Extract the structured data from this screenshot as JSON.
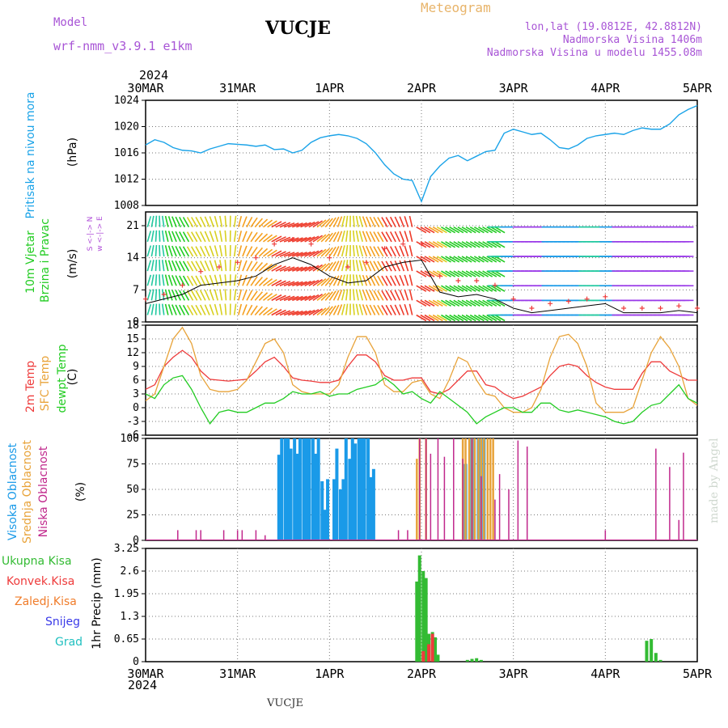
{
  "header": {
    "model_label": "Model",
    "model_name": "wrf-nmm_v3.9.1  e1km",
    "station_title": "VUCJE",
    "meteogram_label": "Meteogram",
    "lonlat": "lon,lat (19.0812E, 42.8812N)",
    "elevation": "Nadmorska Visina 1406m",
    "model_elevation": "Nadmorska Visina u modelu 1455.08m"
  },
  "footer": {
    "station": "VUCJE",
    "credit": "made by Angel"
  },
  "time_axis": {
    "year_top": "2024",
    "year_bottom": "2024",
    "labels": [
      "30MAR",
      "31MAR",
      "1APR",
      "2APR",
      "3APR",
      "4APR",
      "5APR"
    ]
  },
  "colors": {
    "pressure": "#1aa3e8",
    "temp2m": "#ee3b3b",
    "sfc_temp": "#e8a33a",
    "dewpoint": "#22cc22",
    "high_cloud": "#1a9ae8",
    "mid_cloud": "#e8a33a",
    "low_cloud": "#c0288c",
    "total_precip": "#33bb33",
    "conv_precip": "#ee3b3b",
    "frozen_precip": "#f07c2a",
    "snow": "#3a3ae8",
    "hail": "#20c0c0",
    "wind_speed": "#000000",
    "wind_gust": "#ee3b3b"
  },
  "panels": {
    "pressure": {
      "title": "Pritisak na nivou mora",
      "unit": "(hPa)"
    },
    "wind": {
      "title1": "10m Vjetar",
      "title2": "Brzina i Pravac",
      "unit": "(m/s)",
      "compass": "w <-|-> E",
      "compass2": "S <-|-> N"
    },
    "temp": {
      "label1": "2m Temp",
      "label2": "SFC Temp",
      "label3": "dewpt Temp",
      "unit": "(C)"
    },
    "cloud": {
      "label1": "Visoka Oblacnost",
      "label2": "Srednja Oblacnost",
      "label3": "Niska Oblacnost",
      "unit": "(%)"
    },
    "precip": {
      "unit": "1hr Precip (mm)",
      "legend": [
        "Ukupna Kisa",
        "Konvek.Kisa",
        "Zaledj.Kisa",
        "Snijeg",
        "Grad"
      ]
    }
  },
  "chart_data": [
    {
      "type": "line",
      "title": "",
      "ylabel": "Pritisak na nivou mora (hPa)",
      "ylim": [
        1008,
        1024
      ],
      "yticks": [
        "1008",
        "1012",
        "1016",
        "1020",
        "1024"
      ],
      "x_unit": "days from 30MAR 00Z",
      "series": [
        {
          "name": "",
          "x": [
            0,
            0.1,
            0.2,
            0.3,
            0.4,
            0.5,
            0.6,
            0.7,
            0.8,
            0.9,
            1.0,
            1.1,
            1.2,
            1.3,
            1.4,
            1.5,
            1.6,
            1.7,
            1.8,
            1.9,
            2.0,
            2.1,
            2.2,
            2.3,
            2.4,
            2.5,
            2.6,
            2.7,
            2.8,
            2.9,
            3.0,
            3.1,
            3.2,
            3.3,
            3.4,
            3.5,
            3.6,
            3.7,
            3.8,
            3.9,
            4.0,
            4.1,
            4.2,
            4.3,
            4.4,
            4.5,
            4.6,
            4.7,
            4.8,
            4.9,
            5.0,
            5.1,
            5.2,
            5.3,
            5.4,
            5.5,
            5.6,
            5.7,
            5.8,
            5.9,
            6.0
          ],
          "values": [
            1017.2,
            1018.0,
            1017.6,
            1016.8,
            1016.4,
            1016.3,
            1016.0,
            1016.6,
            1017.0,
            1017.4,
            1017.3,
            1017.2,
            1017.0,
            1017.2,
            1016.5,
            1016.6,
            1016.0,
            1016.4,
            1017.6,
            1018.3,
            1018.6,
            1018.8,
            1018.6,
            1018.2,
            1017.4,
            1016.0,
            1014.2,
            1012.8,
            1012.0,
            1011.8,
            1008.6,
            1012.4,
            1014.0,
            1015.2,
            1015.6,
            1014.8,
            1015.5,
            1016.2,
            1016.4,
            1019.0,
            1019.6,
            1019.2,
            1018.8,
            1019.0,
            1018.0,
            1016.8,
            1016.6,
            1017.2,
            1018.2,
            1018.6,
            1018.8,
            1019.0,
            1018.8,
            1019.4,
            1019.8,
            1019.6,
            1019.6,
            1020.4,
            1021.8,
            1022.6,
            1023.2
          ]
        }
      ]
    },
    {
      "type": "line",
      "title": "",
      "ylabel": "10m Vjetar Brzina i Pravac (m/s)",
      "ylim": [
        0,
        24
      ],
      "yticks": [
        "0",
        "7",
        "14",
        "21"
      ],
      "series": [
        {
          "name": "",
          "x": [
            0,
            0.2,
            0.4,
            0.6,
            0.8,
            1.0,
            1.2,
            1.4,
            1.6,
            1.8,
            2.0,
            2.2,
            2.4,
            2.6,
            2.8,
            3.0,
            3.2,
            3.4,
            3.6,
            3.8,
            4.0,
            4.2,
            4.4,
            4.6,
            4.8,
            5.0,
            5.2,
            5.4,
            5.6,
            5.8,
            6.0
          ],
          "values": [
            4,
            5,
            6,
            8,
            8.5,
            9,
            10,
            12.5,
            14,
            12.5,
            10,
            8.5,
            9,
            12,
            13,
            13.5,
            6.5,
            5.5,
            6,
            5,
            3,
            2,
            2.5,
            3,
            3.5,
            4,
            2,
            2,
            2,
            2.5,
            2
          ]
        },
        {
          "name": "",
          "x": [
            0,
            0.2,
            0.4,
            0.6,
            0.8,
            1.0,
            1.2,
            1.4,
            1.6,
            1.8,
            2.0,
            2.2,
            2.4,
            2.6,
            2.8,
            3.0,
            3.2,
            3.4,
            3.6,
            3.8,
            4.0,
            4.2,
            4.4,
            4.6,
            4.8,
            5.0,
            5.2,
            5.4,
            5.6,
            5.8,
            6.0
          ],
          "values": [
            5,
            6,
            8,
            11,
            12,
            13,
            14,
            17,
            18,
            17,
            14,
            12,
            13,
            16,
            17,
            17,
            10,
            9,
            9,
            8,
            5,
            3,
            4,
            4.5,
            5,
            5.5,
            3,
            3,
            3,
            3.5,
            3
          ]
        }
      ]
    },
    {
      "type": "line",
      "title": "",
      "ylabel": "(C)",
      "ylim": [
        -6,
        18
      ],
      "yticks": [
        "-6",
        "-3",
        "0",
        "3",
        "6",
        "9",
        "12",
        "15",
        "18"
      ],
      "series": [
        {
          "name": "2m Temp",
          "x": [
            0,
            0.1,
            0.2,
            0.3,
            0.4,
            0.5,
            0.6,
            0.7,
            0.8,
            0.9,
            1.0,
            1.1,
            1.2,
            1.3,
            1.4,
            1.5,
            1.6,
            1.7,
            1.8,
            1.9,
            2.0,
            2.1,
            2.2,
            2.3,
            2.4,
            2.5,
            2.6,
            2.7,
            2.8,
            2.9,
            3.0,
            3.1,
            3.2,
            3.3,
            3.4,
            3.5,
            3.6,
            3.7,
            3.8,
            3.9,
            4.0,
            4.1,
            4.2,
            4.3,
            4.4,
            4.5,
            4.6,
            4.7,
            4.8,
            4.9,
            5.0,
            5.1,
            5.2,
            5.3,
            5.4,
            5.5,
            5.6,
            5.7,
            5.8,
            5.9,
            6.0
          ],
          "values": [
            4,
            5,
            9,
            11,
            12.5,
            11,
            8,
            6.2,
            6,
            5.8,
            6,
            6.2,
            8,
            10,
            11,
            9,
            6.5,
            6,
            5.8,
            5.5,
            5.5,
            6,
            9,
            11.5,
            11.5,
            10,
            7,
            6,
            6,
            6.5,
            6.5,
            3.5,
            3,
            4,
            6,
            8,
            8,
            5,
            4.5,
            3,
            2,
            2.5,
            3.5,
            4.5,
            7,
            9,
            9.5,
            9,
            7,
            5.5,
            4.5,
            4,
            4,
            4,
            7.5,
            10,
            10,
            8,
            7,
            6,
            6
          ]
        },
        {
          "name": "SFC Temp",
          "x": [
            0,
            0.1,
            0.2,
            0.3,
            0.4,
            0.5,
            0.6,
            0.7,
            0.8,
            0.9,
            1.0,
            1.1,
            1.2,
            1.3,
            1.4,
            1.5,
            1.6,
            1.7,
            1.8,
            1.9,
            2.0,
            2.1,
            2.2,
            2.3,
            2.4,
            2.5,
            2.6,
            2.7,
            2.8,
            2.9,
            3.0,
            3.1,
            3.2,
            3.3,
            3.4,
            3.5,
            3.6,
            3.7,
            3.8,
            3.9,
            4.0,
            4.1,
            4.2,
            4.3,
            4.4,
            4.5,
            4.6,
            4.7,
            4.8,
            4.9,
            5.0,
            5.1,
            5.2,
            5.3,
            5.4,
            5.5,
            5.6,
            5.7,
            5.8,
            5.9,
            6.0
          ],
          "values": [
            1.5,
            3,
            9,
            15,
            17.5,
            14,
            7,
            4,
            3.5,
            3.5,
            4,
            6,
            10,
            14,
            15,
            12,
            5,
            3.5,
            3,
            3,
            3,
            5,
            11,
            15.5,
            15.5,
            12,
            5,
            3.5,
            3.5,
            5.5,
            6,
            3,
            2,
            6,
            11,
            10,
            6,
            3,
            2.5,
            0,
            -1,
            -1,
            0,
            4,
            11,
            15.5,
            16,
            14,
            9,
            1,
            -1,
            -1,
            -1,
            0,
            6,
            12,
            15.5,
            13,
            9,
            2,
            0.5
          ]
        },
        {
          "name": "dewpt Temp",
          "x": [
            0,
            0.1,
            0.2,
            0.3,
            0.4,
            0.5,
            0.6,
            0.7,
            0.8,
            0.9,
            1.0,
            1.1,
            1.2,
            1.3,
            1.4,
            1.5,
            1.6,
            1.7,
            1.8,
            1.9,
            2.0,
            2.1,
            2.2,
            2.3,
            2.4,
            2.5,
            2.6,
            2.7,
            2.8,
            2.9,
            3.0,
            3.1,
            3.2,
            3.3,
            3.4,
            3.5,
            3.6,
            3.7,
            3.8,
            3.9,
            4.0,
            4.1,
            4.2,
            4.3,
            4.4,
            4.5,
            4.6,
            4.7,
            4.8,
            4.9,
            5.0,
            5.1,
            5.2,
            5.3,
            5.4,
            5.5,
            5.6,
            5.7,
            5.8,
            5.9,
            6.0
          ],
          "values": [
            3,
            2,
            5,
            6.5,
            7,
            4,
            0,
            -3.5,
            -1,
            -0.5,
            -1,
            -1,
            0,
            1,
            1,
            2,
            3.5,
            3,
            3,
            3.5,
            2.5,
            3,
            3,
            4,
            4.5,
            5,
            6.5,
            5,
            3,
            3.5,
            2,
            1,
            3.5,
            2,
            0.5,
            -1,
            -3.5,
            -2,
            -1,
            0,
            0,
            -1,
            -1,
            1,
            1,
            -0.5,
            -1,
            -0.5,
            -1,
            -1.5,
            -2,
            -3,
            -3.5,
            -3,
            -1,
            0.5,
            1,
            3,
            5,
            2,
            1
          ]
        }
      ]
    },
    {
      "type": "bar",
      "title": "",
      "ylabel": "(%)",
      "ylim": [
        0,
        100
      ],
      "yticks": [
        "0",
        "25",
        "50",
        "75",
        "100"
      ],
      "series": [
        {
          "name": "Visoka Oblacnost",
          "x": [
            1.45,
            1.48,
            1.52,
            1.55,
            1.58,
            1.62,
            1.65,
            1.68,
            1.72,
            1.75,
            1.78,
            1.82,
            1.85,
            1.88,
            1.92,
            1.95,
            1.98,
            2.05,
            2.08,
            2.12,
            2.15,
            2.18,
            2.22,
            2.25,
            2.28,
            2.32,
            2.35,
            2.38,
            2.42,
            2.45,
            2.48,
            3.45,
            3.48,
            3.52,
            3.55,
            3.58,
            3.62,
            3.65,
            3.68
          ],
          "values": [
            84,
            100,
            100,
            100,
            90,
            100,
            85,
            100,
            100,
            100,
            100,
            100,
            85,
            100,
            58,
            30,
            60,
            60,
            90,
            50,
            60,
            100,
            80,
            100,
            95,
            100,
            100,
            100,
            100,
            62,
            70,
            0,
            75,
            0,
            100,
            0,
            100,
            0,
            100
          ]
        },
        {
          "name": "Srednja Oblacnost",
          "x": [
            2.95,
            2.98,
            3.02,
            3.05,
            3.08,
            3.12,
            3.45,
            3.48,
            3.52,
            3.55,
            3.58,
            3.62,
            3.65,
            3.68,
            3.72,
            3.75,
            3.78
          ],
          "values": [
            80,
            100,
            0,
            100,
            0,
            0,
            100,
            100,
            100,
            100,
            100,
            100,
            100,
            100,
            100,
            100,
            100
          ]
        },
        {
          "name": "Niska Oblacnost",
          "x": [
            0.35,
            0.55,
            0.6,
            0.85,
            1.0,
            1.05,
            1.2,
            1.3,
            2.75,
            2.85,
            2.98,
            3.05,
            3.1,
            3.18,
            3.25,
            3.35,
            3.45,
            3.55,
            3.65,
            3.8,
            3.85,
            3.95,
            4.05,
            4.15,
            5.0,
            5.55,
            5.62,
            5.7,
            5.8,
            5.85
          ],
          "values": [
            10,
            10,
            10,
            10,
            10,
            10,
            10,
            5,
            10,
            10,
            100,
            100,
            85,
            100,
            82,
            100,
            80,
            100,
            63,
            40,
            65,
            50,
            98,
            92,
            10,
            90,
            0,
            72,
            20,
            86
          ]
        }
      ]
    },
    {
      "type": "bar",
      "title": "",
      "ylabel": "1hr Precip (mm)",
      "ylim": [
        0,
        3.25
      ],
      "yticks": [
        "0",
        "0.65",
        "1.3",
        "1.95",
        "2.6",
        "3.25"
      ],
      "series": [
        {
          "name": "Ukupna Kisa",
          "x": [
            2.95,
            2.98,
            3.02,
            3.05,
            3.08,
            3.12,
            3.15,
            3.18,
            3.5,
            3.55,
            3.6,
            3.65,
            5.45,
            5.5,
            5.55,
            5.6
          ],
          "values": [
            2.3,
            3.05,
            2.6,
            2.4,
            0.8,
            0.85,
            0.7,
            0.2,
            0.05,
            0.08,
            0.1,
            0.05,
            0.6,
            0.65,
            0.25,
            0.05
          ]
        },
        {
          "name": "Konvek.Kisa",
          "x": [
            3.02,
            3.08,
            3.12
          ],
          "values": [
            0.3,
            0.5,
            0.8
          ]
        },
        {
          "name": "Zaledj.Kisa",
          "x": [],
          "values": []
        },
        {
          "name": "Snijeg",
          "x": [],
          "values": []
        },
        {
          "name": "Grad",
          "x": [],
          "values": []
        }
      ]
    }
  ]
}
